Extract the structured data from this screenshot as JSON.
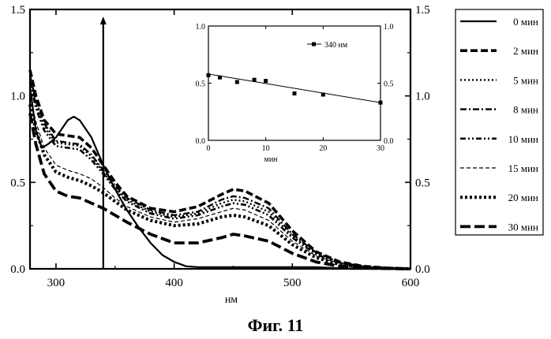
{
  "caption": "Фиг. 11",
  "chart_data": [
    {
      "type": "line",
      "xlabel": "нм",
      "ylabel": "",
      "xlim": [
        278,
        600
      ],
      "ylim": [
        0,
        1.5
      ],
      "x_ticks": [
        300,
        400,
        500,
        600
      ],
      "x_tick_labels": [
        "300",
        "400",
        "500",
        "600"
      ],
      "y_ticks": [
        0,
        0.5,
        1.0,
        1.5
      ],
      "y_tick_labels": [
        "0.0",
        "0.5",
        "1.0",
        "1.5"
      ],
      "right_tick_labels": [
        "0.0",
        "0.5",
        "1.0",
        "1.5"
      ],
      "grid": false,
      "legend_position": "outside-right",
      "annotations": [
        {
          "type": "vertical-arrow",
          "x": 340,
          "y_from": 0,
          "y_to": 1.45
        }
      ],
      "series": [
        {
          "name": "0 мин",
          "style": "solid",
          "x": [
            278,
            283,
            288,
            293,
            300,
            310,
            315,
            320,
            330,
            340,
            350,
            360,
            370,
            380,
            390,
            400,
            410,
            420,
            440,
            460,
            480,
            500,
            520,
            550,
            580,
            600
          ],
          "y": [
            1.05,
            0.8,
            0.7,
            0.72,
            0.76,
            0.86,
            0.88,
            0.86,
            0.76,
            0.6,
            0.46,
            0.34,
            0.24,
            0.15,
            0.08,
            0.04,
            0.015,
            0.01,
            0.01,
            0.01,
            0.01,
            0.01,
            0.01,
            0.0,
            0.0,
            0.0
          ]
        },
        {
          "name": "2 мин",
          "style": "dash-heavy",
          "x": [
            278,
            283,
            290,
            300,
            310,
            320,
            330,
            340,
            350,
            360,
            380,
            400,
            420,
            440,
            450,
            460,
            480,
            500,
            520,
            540,
            560,
            580,
            600
          ],
          "y": [
            1.15,
            1.0,
            0.86,
            0.78,
            0.77,
            0.76,
            0.7,
            0.6,
            0.5,
            0.42,
            0.35,
            0.33,
            0.36,
            0.43,
            0.46,
            0.45,
            0.38,
            0.22,
            0.1,
            0.04,
            0.015,
            0.005,
            0.0
          ]
        },
        {
          "name": "5 мин",
          "style": "dot",
          "x": [
            278,
            283,
            290,
            300,
            310,
            320,
            330,
            340,
            350,
            360,
            380,
            400,
            420,
            440,
            450,
            460,
            480,
            500,
            520,
            540,
            560,
            580,
            600
          ],
          "y": [
            1.1,
            0.95,
            0.82,
            0.73,
            0.72,
            0.71,
            0.65,
            0.56,
            0.47,
            0.4,
            0.33,
            0.3,
            0.32,
            0.38,
            0.4,
            0.39,
            0.33,
            0.19,
            0.09,
            0.035,
            0.013,
            0.004,
            0.0
          ]
        },
        {
          "name": "8 мин",
          "style": "dash-dot",
          "x": [
            278,
            283,
            290,
            300,
            310,
            320,
            330,
            340,
            350,
            360,
            380,
            400,
            420,
            440,
            450,
            460,
            480,
            500,
            520,
            540,
            560,
            580,
            600
          ],
          "y": [
            1.12,
            0.97,
            0.84,
            0.74,
            0.73,
            0.72,
            0.66,
            0.57,
            0.48,
            0.41,
            0.34,
            0.31,
            0.33,
            0.4,
            0.42,
            0.41,
            0.35,
            0.2,
            0.095,
            0.037,
            0.014,
            0.004,
            0.0
          ]
        },
        {
          "name": "10 мин",
          "style": "dash-dot-dot",
          "x": [
            278,
            283,
            290,
            300,
            310,
            320,
            330,
            340,
            350,
            360,
            380,
            400,
            420,
            440,
            450,
            460,
            480,
            500,
            520,
            540,
            560,
            580,
            600
          ],
          "y": [
            1.08,
            0.93,
            0.8,
            0.71,
            0.7,
            0.69,
            0.63,
            0.55,
            0.46,
            0.39,
            0.32,
            0.29,
            0.31,
            0.36,
            0.38,
            0.37,
            0.31,
            0.18,
            0.085,
            0.033,
            0.012,
            0.004,
            0.0
          ]
        },
        {
          "name": "15 мин",
          "style": "thin-dash",
          "x": [
            278,
            283,
            290,
            300,
            310,
            320,
            330,
            340,
            350,
            360,
            380,
            400,
            420,
            440,
            450,
            460,
            480,
            500,
            520,
            540,
            560,
            580,
            600
          ],
          "y": [
            1.0,
            0.85,
            0.7,
            0.6,
            0.57,
            0.55,
            0.52,
            0.47,
            0.41,
            0.36,
            0.3,
            0.27,
            0.29,
            0.33,
            0.35,
            0.34,
            0.28,
            0.16,
            0.075,
            0.03,
            0.011,
            0.003,
            0.0
          ]
        },
        {
          "name": "20 мин",
          "style": "dot-heavy",
          "x": [
            278,
            283,
            290,
            300,
            310,
            320,
            330,
            340,
            350,
            360,
            380,
            400,
            420,
            440,
            450,
            460,
            480,
            500,
            520,
            540,
            560,
            580,
            600
          ],
          "y": [
            0.95,
            0.8,
            0.66,
            0.56,
            0.53,
            0.51,
            0.48,
            0.44,
            0.39,
            0.34,
            0.28,
            0.25,
            0.26,
            0.3,
            0.31,
            0.3,
            0.25,
            0.14,
            0.065,
            0.025,
            0.009,
            0.003,
            0.0
          ]
        },
        {
          "name": "30 мин",
          "style": "dash-long-heavy",
          "x": [
            278,
            283,
            290,
            300,
            310,
            320,
            330,
            340,
            350,
            360,
            380,
            400,
            420,
            440,
            450,
            460,
            480,
            500,
            520,
            540,
            560,
            580,
            600
          ],
          "y": [
            0.9,
            0.72,
            0.55,
            0.45,
            0.42,
            0.41,
            0.38,
            0.35,
            0.31,
            0.27,
            0.2,
            0.15,
            0.15,
            0.18,
            0.2,
            0.19,
            0.16,
            0.09,
            0.04,
            0.015,
            0.005,
            0.002,
            0.0
          ]
        }
      ]
    },
    {
      "type": "scatter",
      "xlabel": "мин",
      "ylabel": "",
      "xlim": [
        0,
        30
      ],
      "ylim": [
        0,
        1.0
      ],
      "x_ticks": [
        0,
        10,
        20,
        30
      ],
      "x_tick_labels": [
        "0",
        "10",
        "20",
        "30"
      ],
      "y_ticks": [
        0,
        0.5,
        1.0
      ],
      "y_tick_labels": [
        "0.0",
        "0.5",
        "1.0"
      ],
      "right_tick_labels": [
        "0.0",
        "0.5",
        "1.0"
      ],
      "grid": false,
      "legend_position": "top-right",
      "series": [
        {
          "name": "340 нм",
          "marker": "square",
          "x": [
            0,
            2,
            5,
            8,
            10,
            15,
            20,
            30
          ],
          "y": [
            0.57,
            0.55,
            0.51,
            0.53,
            0.52,
            0.41,
            0.4,
            0.33
          ]
        }
      ],
      "fit_line": {
        "x": [
          0,
          30
        ],
        "y": [
          0.58,
          0.33
        ]
      }
    }
  ]
}
